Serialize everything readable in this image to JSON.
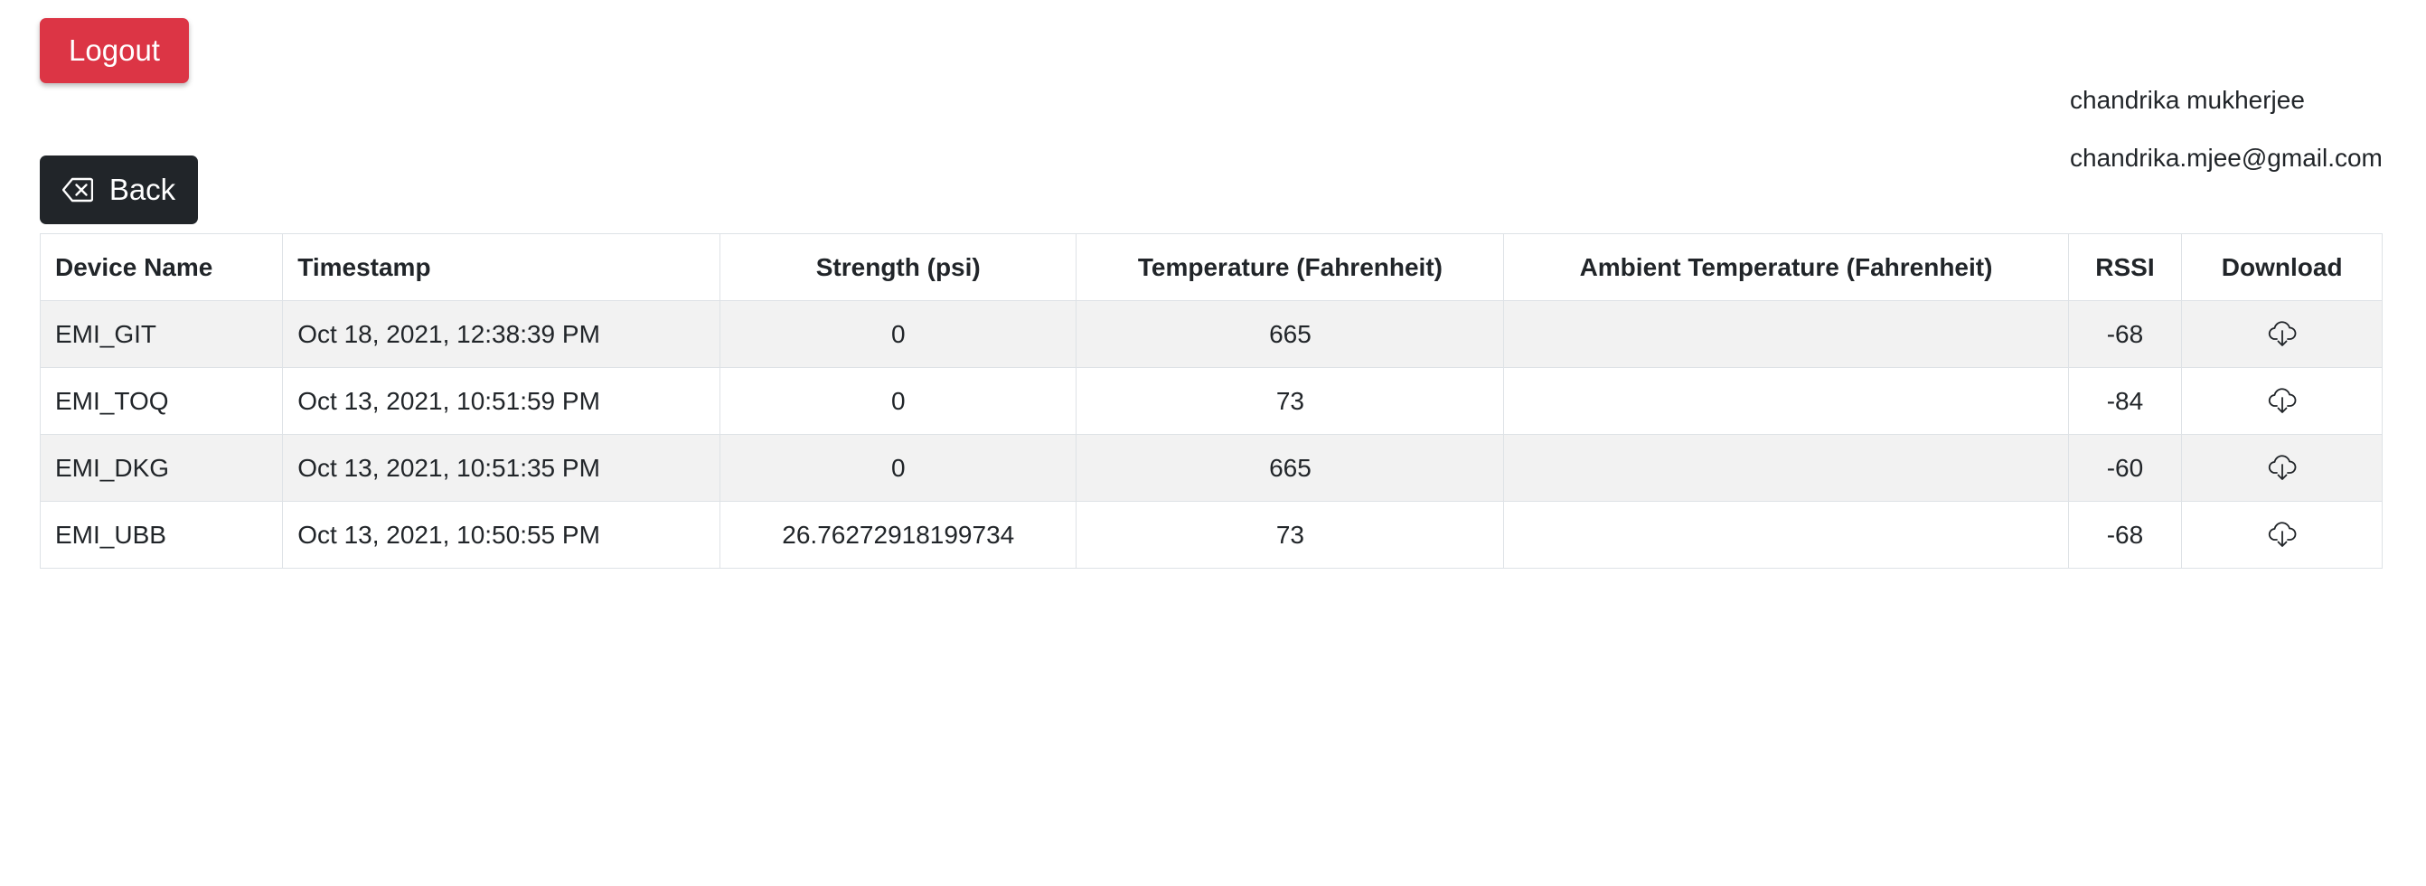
{
  "header": {
    "logout_label": "Logout",
    "back_label": "Back"
  },
  "user": {
    "name": "chandrika mukherjee",
    "email": "chandrika.mjee@gmail.com"
  },
  "table": {
    "columns": [
      "Device Name",
      "Timestamp",
      "Strength (psi)",
      "Temperature (Fahrenheit)",
      "Ambient Temperature (Fahrenheit)",
      "RSSI",
      "Download"
    ],
    "rows": [
      {
        "device": "EMI_GIT",
        "timestamp": "Oct 18, 2021, 12:38:39 PM",
        "strength": "0",
        "temperature": "665",
        "ambient": "",
        "rssi": "-68",
        "download_icon": "cloud-download-icon"
      },
      {
        "device": "EMI_TOQ",
        "timestamp": "Oct 13, 2021, 10:51:59 PM",
        "strength": "0",
        "temperature": "73",
        "ambient": "",
        "rssi": "-84",
        "download_icon": "cloud-download-icon"
      },
      {
        "device": "EMI_DKG",
        "timestamp": "Oct 13, 2021, 10:51:35 PM",
        "strength": "0",
        "temperature": "665",
        "ambient": "",
        "rssi": "-60",
        "download_icon": "cloud-download-icon"
      },
      {
        "device": "EMI_UBB",
        "timestamp": "Oct 13, 2021, 10:50:55 PM",
        "strength": "26.76272918199734",
        "temperature": "73",
        "ambient": "",
        "rssi": "-68",
        "download_icon": "cloud-download-icon"
      }
    ]
  },
  "colors": {
    "logout_bg": "#dc3545",
    "back_bg": "#212529",
    "stripe_bg": "#f2f2f2",
    "border": "#dee2e6"
  },
  "icons": {
    "back": "backspace-icon",
    "download": "cloud-download-icon"
  }
}
